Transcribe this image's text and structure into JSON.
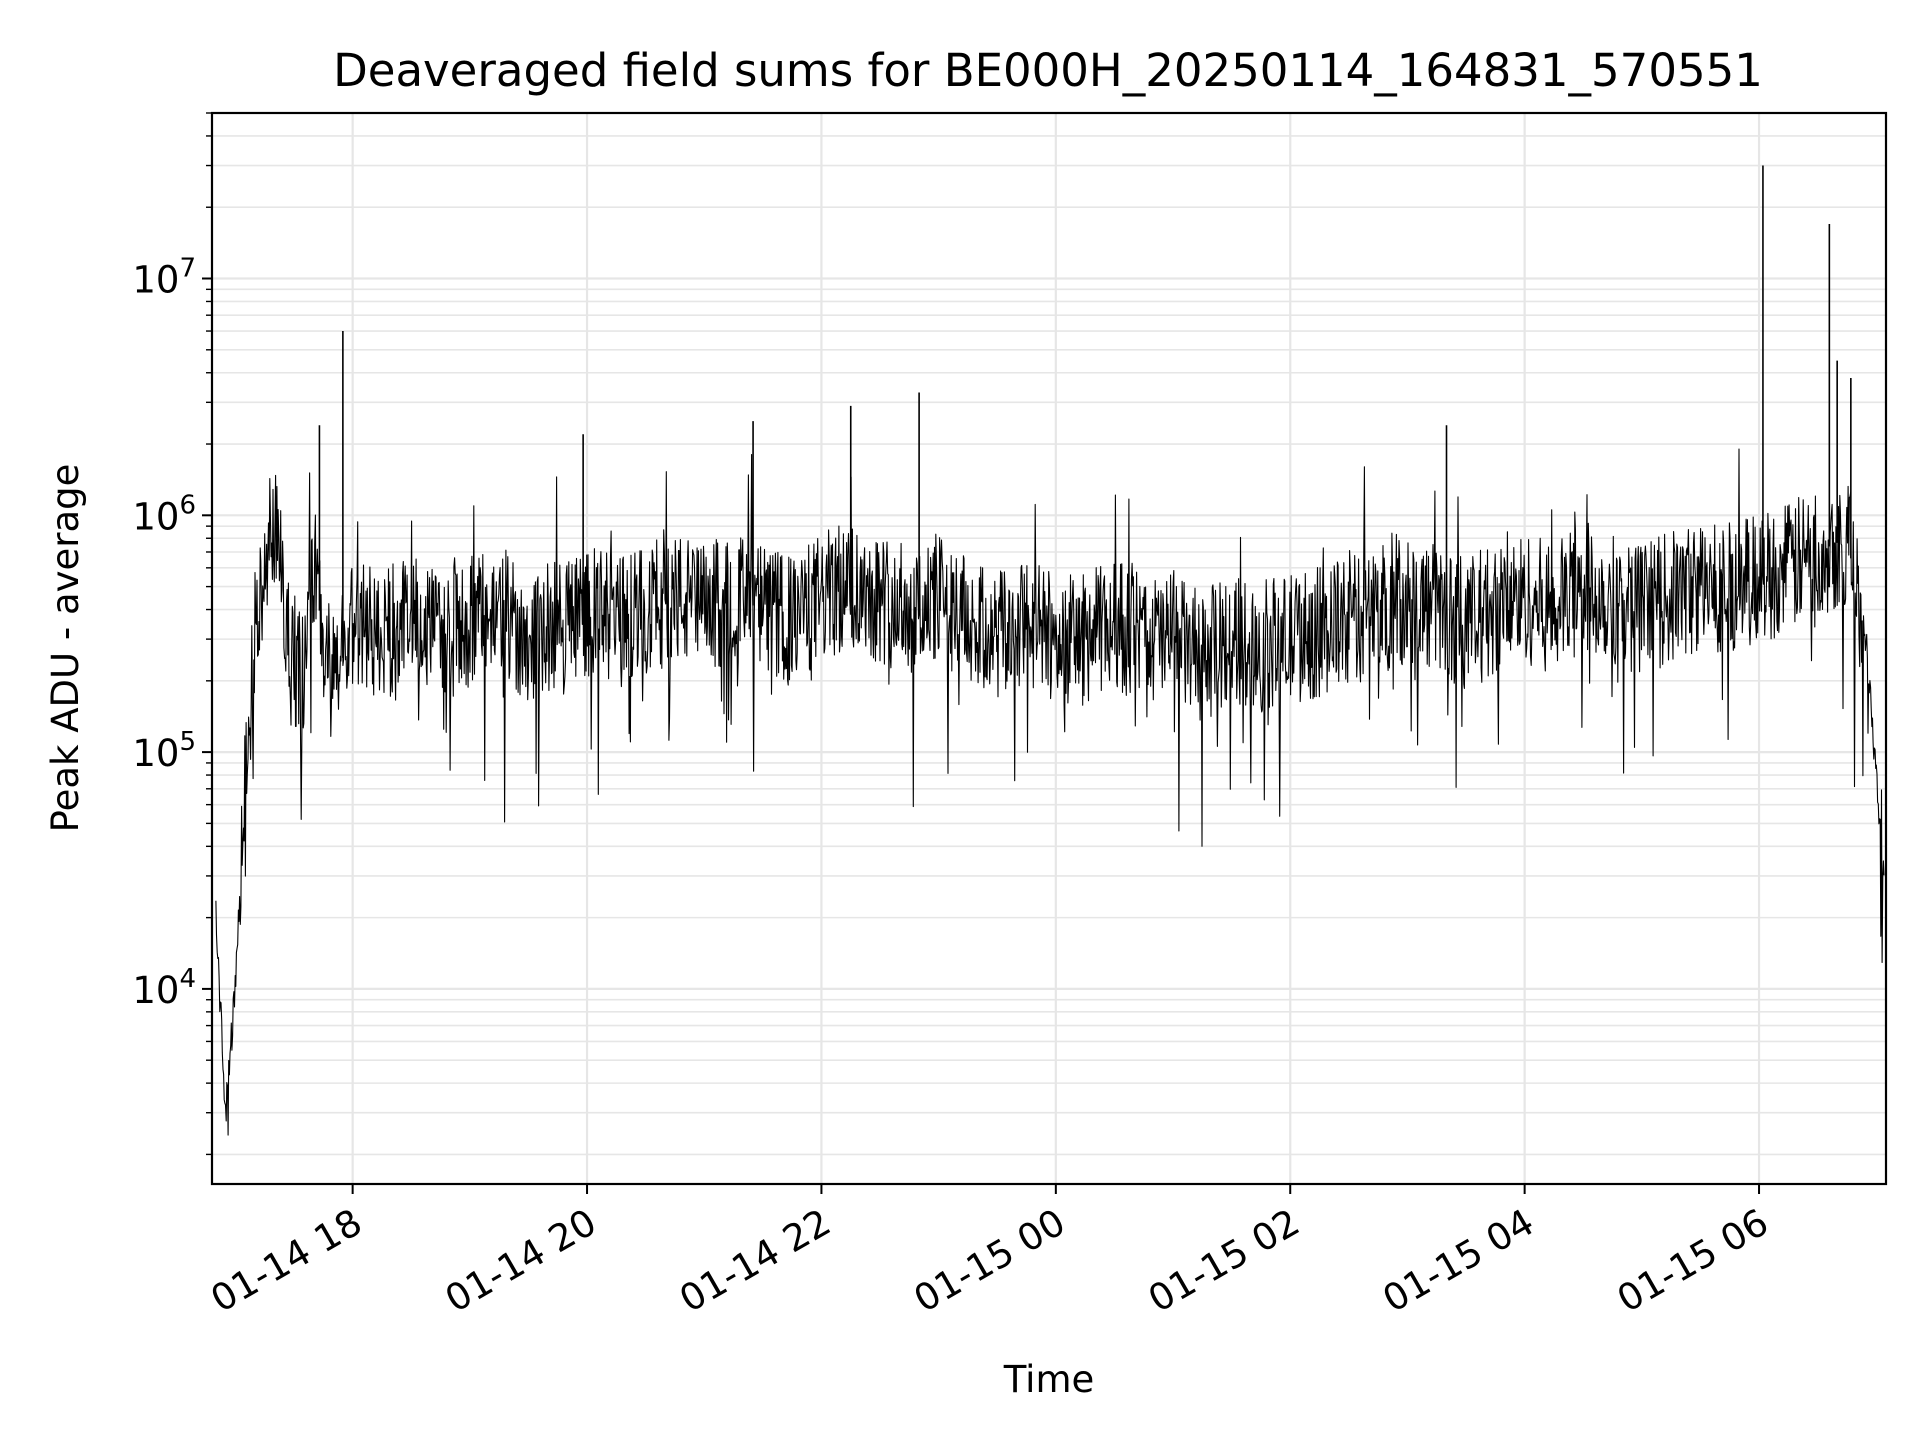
{
  "chart_data": {
    "type": "line",
    "title": "Deaveraged field sums for BE000H_20250114_164831_570551",
    "xlabel": "Time",
    "ylabel": "Peak ADU - average",
    "yscale": "log",
    "ylim": [
      1500,
      50000000
    ],
    "xlim": [
      "2025-01-14T16:48",
      "2025-01-15T07:05"
    ],
    "grid": true,
    "line_color": "#000000",
    "grid_color": "#e6e6e6",
    "x_ticks": [
      {
        "t": "2025-01-14T18:00",
        "label": "01-14 18"
      },
      {
        "t": "2025-01-14T20:00",
        "label": "01-14 20"
      },
      {
        "t": "2025-01-14T22:00",
        "label": "01-14 22"
      },
      {
        "t": "2025-01-15T00:00",
        "label": "01-15 00"
      },
      {
        "t": "2025-01-15T02:00",
        "label": "01-15 02"
      },
      {
        "t": "2025-01-15T04:00",
        "label": "01-15 04"
      },
      {
        "t": "2025-01-15T06:00",
        "label": "01-15 06"
      }
    ],
    "y_ticks": [
      {
        "value": 10000,
        "base": "10",
        "exp": "4"
      },
      {
        "value": 100000,
        "base": "10",
        "exp": "5"
      },
      {
        "value": 1000000,
        "base": "10",
        "exp": "6"
      },
      {
        "value": 10000000,
        "base": "10",
        "exp": "7"
      }
    ],
    "series": [
      {
        "x": [
          "2025-01-14T16:50",
          "2025-01-14T16:55",
          "2025-01-14T17:00",
          "2025-01-14T17:05",
          "2025-01-14T17:10",
          "2025-01-14T17:15",
          "2025-01-14T17:20",
          "2025-01-14T17:25",
          "2025-01-14T17:30",
          "2025-01-14T17:35",
          "2025-01-14T17:40",
          "2025-01-14T17:45",
          "2025-01-14T17:50",
          "2025-01-14T17:55",
          "2025-01-14T18:00",
          "2025-01-14T18:15",
          "2025-01-14T18:30",
          "2025-01-14T18:45",
          "2025-01-14T19:00",
          "2025-01-14T19:15",
          "2025-01-14T19:30",
          "2025-01-14T19:45",
          "2025-01-14T20:00",
          "2025-01-14T20:15",
          "2025-01-14T20:30",
          "2025-01-14T20:45",
          "2025-01-14T21:00",
          "2025-01-14T21:15",
          "2025-01-14T21:30",
          "2025-01-14T21:45",
          "2025-01-14T22:00",
          "2025-01-14T22:15",
          "2025-01-14T22:30",
          "2025-01-14T22:45",
          "2025-01-14T23:00",
          "2025-01-14T23:15",
          "2025-01-14T23:30",
          "2025-01-14T23:45",
          "2025-01-15T00:00",
          "2025-01-15T00:15",
          "2025-01-15T00:30",
          "2025-01-15T00:45",
          "2025-01-15T01:00",
          "2025-01-15T01:15",
          "2025-01-15T01:30",
          "2025-01-15T01:45",
          "2025-01-15T02:00",
          "2025-01-15T02:15",
          "2025-01-15T02:30",
          "2025-01-15T02:45",
          "2025-01-15T03:00",
          "2025-01-15T03:15",
          "2025-01-15T03:30",
          "2025-01-15T03:45",
          "2025-01-15T04:00",
          "2025-01-15T04:15",
          "2025-01-15T04:30",
          "2025-01-15T04:45",
          "2025-01-15T05:00",
          "2025-01-15T05:15",
          "2025-01-15T05:30",
          "2025-01-15T05:45",
          "2025-01-15T06:00",
          "2025-01-15T06:15",
          "2025-01-15T06:30",
          "2025-01-15T06:45",
          "2025-01-15T06:55",
          "2025-01-15T07:00",
          "2025-01-15T07:04"
        ],
        "y": [
          20000,
          3000,
          10000,
          80000,
          300000,
          700000,
          1000000,
          400000,
          250000,
          200000,
          600000,
          300000,
          200000,
          250000,
          350000,
          300000,
          400000,
          300000,
          350000,
          400000,
          300000,
          350000,
          400000,
          350000,
          400000,
          450000,
          400000,
          450000,
          400000,
          350000,
          450000,
          500000,
          450000,
          400000,
          450000,
          350000,
          300000,
          350000,
          300000,
          300000,
          350000,
          300000,
          300000,
          250000,
          300000,
          280000,
          300000,
          320000,
          350000,
          400000,
          450000,
          400000,
          350000,
          400000,
          450000,
          400000,
          500000,
          450000,
          400000,
          450000,
          500000,
          500000,
          550000,
          600000,
          700000,
          800000,
          300000,
          80000,
          30000
        ],
        "spikes": [
          {
            "t": "2025-01-14T17:55",
            "y": 6000000
          },
          {
            "t": "2025-01-14T17:43",
            "y": 2400000
          },
          {
            "t": "2025-01-14T19:58",
            "y": 2200000
          },
          {
            "t": "2025-01-14T21:25",
            "y": 2500000
          },
          {
            "t": "2025-01-14T22:15",
            "y": 2900000
          },
          {
            "t": "2025-01-14T22:50",
            "y": 3300000
          },
          {
            "t": "2025-01-15T03:20",
            "y": 2400000
          },
          {
            "t": "2025-01-15T06:02",
            "y": 30000000
          },
          {
            "t": "2025-01-15T06:36",
            "y": 17000000
          },
          {
            "t": "2025-01-15T06:40",
            "y": 4500000
          },
          {
            "t": "2025-01-15T06:47",
            "y": 3800000
          }
        ]
      }
    ]
  }
}
